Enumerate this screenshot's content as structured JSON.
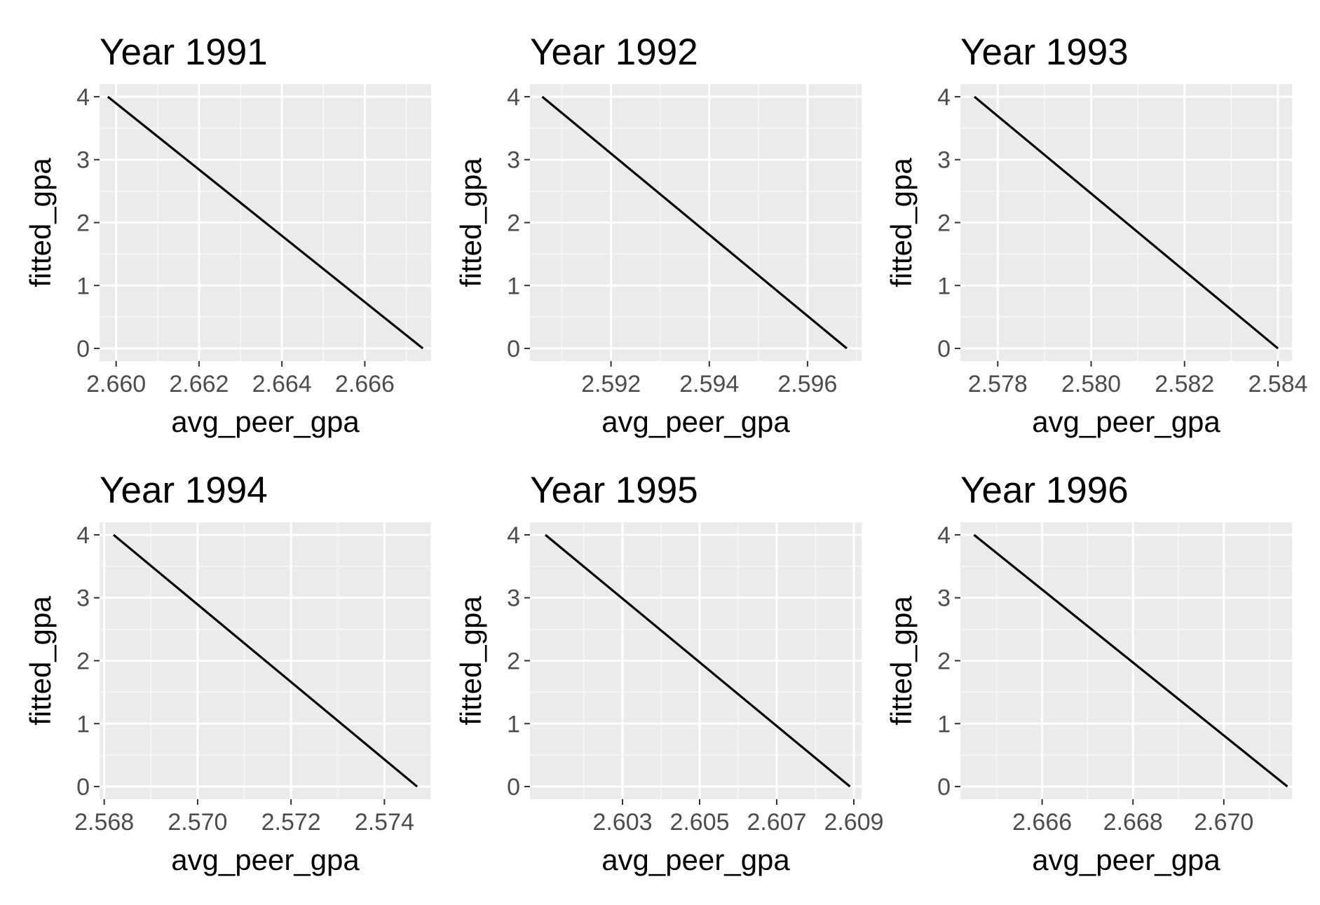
{
  "colors": {
    "panel_background": "#ebebeb",
    "grid_major": "#ffffff",
    "grid_minor": "#f7f7f7",
    "line": "#000000",
    "tick_text": "#4d4d4d",
    "tick_mark": "#333333"
  },
  "chart_data": [
    {
      "type": "line",
      "title": "Year 1991",
      "xlabel": "avg_peer_gpa",
      "ylabel": "fitted_gpa",
      "xlim": [
        2.6596,
        2.6676
      ],
      "ylim": [
        -0.2,
        4.2
      ],
      "xticks": [
        2.66,
        2.662,
        2.664,
        2.666
      ],
      "xtick_labels": [
        "2.660",
        "2.662",
        "2.664",
        "2.666"
      ],
      "yticks": [
        0,
        1,
        2,
        3,
        4
      ],
      "ytick_labels": [
        "0",
        "1",
        "2",
        "3",
        "4"
      ],
      "grid": true,
      "series": [
        {
          "x": [
            2.6598,
            2.6674
          ],
          "y": [
            4,
            0
          ]
        }
      ]
    },
    {
      "type": "line",
      "title": "Year 1992",
      "xlabel": "avg_peer_gpa",
      "ylabel": "fitted_gpa",
      "xlim": [
        2.59035,
        2.5971
      ],
      "ylim": [
        -0.2,
        4.2
      ],
      "xticks": [
        2.592,
        2.594,
        2.596
      ],
      "xtick_labels": [
        "2.592",
        "2.594",
        "2.596"
      ],
      "yticks": [
        0,
        1,
        2,
        3,
        4
      ],
      "ytick_labels": [
        "0",
        "1",
        "2",
        "3",
        "4"
      ],
      "grid": true,
      "series": [
        {
          "x": [
            2.5906,
            2.5968
          ],
          "y": [
            4,
            0
          ]
        }
      ]
    },
    {
      "type": "line",
      "title": "Year 1993",
      "xlabel": "avg_peer_gpa",
      "ylabel": "fitted_gpa",
      "xlim": [
        2.5772,
        2.5843
      ],
      "ylim": [
        -0.2,
        4.2
      ],
      "xticks": [
        2.578,
        2.58,
        2.582,
        2.584
      ],
      "xtick_labels": [
        "2.578",
        "2.580",
        "2.582",
        "2.584"
      ],
      "yticks": [
        0,
        1,
        2,
        3,
        4
      ],
      "ytick_labels": [
        "0",
        "1",
        "2",
        "3",
        "4"
      ],
      "grid": true,
      "series": [
        {
          "x": [
            2.5775,
            2.584
          ],
          "y": [
            4,
            0
          ]
        }
      ]
    },
    {
      "type": "line",
      "title": "Year 1994",
      "xlabel": "avg_peer_gpa",
      "ylabel": "fitted_gpa",
      "xlim": [
        2.5679,
        2.575
      ],
      "ylim": [
        -0.2,
        4.2
      ],
      "xticks": [
        2.568,
        2.57,
        2.572,
        2.574
      ],
      "xtick_labels": [
        "2.568",
        "2.570",
        "2.572",
        "2.574"
      ],
      "yticks": [
        0,
        1,
        2,
        3,
        4
      ],
      "ytick_labels": [
        "0",
        "1",
        "2",
        "3",
        "4"
      ],
      "grid": true,
      "series": [
        {
          "x": [
            2.5682,
            2.5747
          ],
          "y": [
            4,
            0
          ]
        }
      ]
    },
    {
      "type": "line",
      "title": "Year 1995",
      "xlabel": "avg_peer_gpa",
      "ylabel": "fitted_gpa",
      "xlim": [
        2.6006,
        2.6092
      ],
      "ylim": [
        -0.2,
        4.2
      ],
      "xticks": [
        2.603,
        2.605,
        2.607,
        2.609
      ],
      "xtick_labels": [
        "2.603",
        "2.605",
        "2.607",
        "2.609"
      ],
      "yticks": [
        0,
        1,
        2,
        3,
        4
      ],
      "ytick_labels": [
        "0",
        "1",
        "2",
        "3",
        "4"
      ],
      "grid": true,
      "series": [
        {
          "x": [
            2.601,
            2.6089
          ],
          "y": [
            4,
            0
          ]
        }
      ]
    },
    {
      "type": "line",
      "title": "Year 1996",
      "xlabel": "avg_peer_gpa",
      "ylabel": "fitted_gpa",
      "xlim": [
        2.6642,
        2.6715
      ],
      "ylim": [
        -0.2,
        4.2
      ],
      "xticks": [
        2.666,
        2.668,
        2.67
      ],
      "xtick_labels": [
        "2.666",
        "2.668",
        "2.670"
      ],
      "yticks": [
        0,
        1,
        2,
        3,
        4
      ],
      "ytick_labels": [
        "0",
        "1",
        "2",
        "3",
        "4"
      ],
      "grid": true,
      "series": [
        {
          "x": [
            2.6645,
            2.6714
          ],
          "y": [
            4,
            0
          ]
        }
      ]
    }
  ]
}
